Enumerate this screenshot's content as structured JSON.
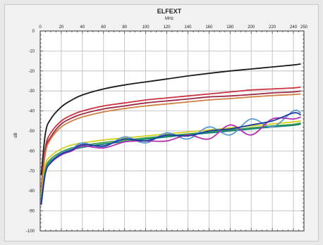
{
  "chart_data": {
    "type": "line",
    "title": "ELFEXT",
    "xlabel": "MHz",
    "ylabel": "dB",
    "xlim": [
      0,
      250
    ],
    "ylim": [
      -100,
      0
    ],
    "x_ticks": [
      0,
      20,
      40,
      60,
      80,
      100,
      120,
      140,
      160,
      180,
      200,
      220,
      240,
      250
    ],
    "x_tick_labels": [
      "0",
      "20",
      "40",
      "60",
      "80",
      "100",
      "120",
      "140",
      "160",
      "180",
      "200",
      "220",
      "240",
      "250"
    ],
    "y_ticks": [
      0,
      -10,
      -20,
      -30,
      -40,
      -50,
      -60,
      -70,
      -80,
      -90,
      -100
    ],
    "y_tick_labels": [
      "0",
      "-10",
      "-20",
      "-30",
      "-40",
      "-50",
      "-60",
      "-70",
      "-80",
      "-90",
      "-100"
    ],
    "grid": true,
    "x": [
      1,
      5,
      10,
      20,
      30,
      40,
      60,
      80,
      100,
      120,
      140,
      160,
      180,
      200,
      220,
      240,
      247
    ],
    "series": [
      {
        "color": "#1a1a1a",
        "values": [
          -72,
          -51,
          -44,
          -38,
          -34.5,
          -32,
          -29,
          -27,
          -25.5,
          -24,
          -22.5,
          -21.2,
          -20,
          -19,
          -18,
          -17,
          -16.5
        ]
      },
      {
        "color": "#cc3040",
        "values": [
          -78,
          -58,
          -51,
          -45,
          -42,
          -40,
          -37.5,
          -36,
          -34.5,
          -33.5,
          -32.5,
          -31.5,
          -30.5,
          -29.5,
          -29,
          -28.5,
          -28
        ]
      },
      {
        "color": "#9a2a45",
        "values": [
          -80,
          -59.5,
          -53,
          -46.5,
          -43.5,
          -41.5,
          -39,
          -37.5,
          -36,
          -35,
          -34,
          -33,
          -32.5,
          -31.8,
          -31,
          -30.5,
          -30
        ]
      },
      {
        "color": "#d08040",
        "values": [
          -81,
          -61,
          -54,
          -48,
          -45,
          -43,
          -40.5,
          -38.8,
          -37.5,
          -36.5,
          -35.5,
          -34.5,
          -33.8,
          -33,
          -32.3,
          -31.8,
          -31.5
        ]
      },
      {
        "color": "#d4d020",
        "values": [
          -82,
          -67,
          -62.5,
          -59,
          -57,
          -56,
          -54.5,
          -53.5,
          -52.5,
          -51.5,
          -50.5,
          -49.5,
          -48.5,
          -47.5,
          -46.5,
          -45.5,
          -45
        ]
      },
      {
        "color": "#3aa040",
        "values": [
          -84,
          -69,
          -64,
          -60.5,
          -58.5,
          -57.3,
          -55.8,
          -54.6,
          -53.5,
          -52.5,
          -51.5,
          -50.5,
          -49.5,
          -48.5,
          -47.5,
          -46.7,
          -46
        ]
      },
      {
        "color": "#158080",
        "values": [
          -85,
          -70,
          -65,
          -61.5,
          -59.5,
          -58.2,
          -56.6,
          -55.3,
          -54.1,
          -53,
          -52,
          -51,
          -50,
          -49,
          -48,
          -47.2,
          -46.5
        ]
      },
      {
        "color": "#5a9ad0",
        "values": [
          -86,
          -70.5,
          -65.5,
          -61,
          -59,
          -56,
          -58,
          -53,
          -56,
          -51,
          -54,
          -48,
          -52,
          -44,
          -48,
          -40,
          -41
        ]
      },
      {
        "color": "#b030b0",
        "values": [
          -87,
          -71,
          -66,
          -62,
          -60,
          -57.5,
          -58.5,
          -55.5,
          -55,
          -55,
          -52,
          -54,
          -47,
          -52,
          -44,
          -44,
          -43
        ]
      },
      {
        "color": "#1a3aa0",
        "values": [
          -86.5,
          -71,
          -65.8,
          -61.5,
          -59.5,
          -56.8,
          -57.5,
          -54,
          -55,
          -52,
          -52.5,
          -50,
          -49,
          -47,
          -45,
          -41,
          -42
        ]
      }
    ]
  }
}
